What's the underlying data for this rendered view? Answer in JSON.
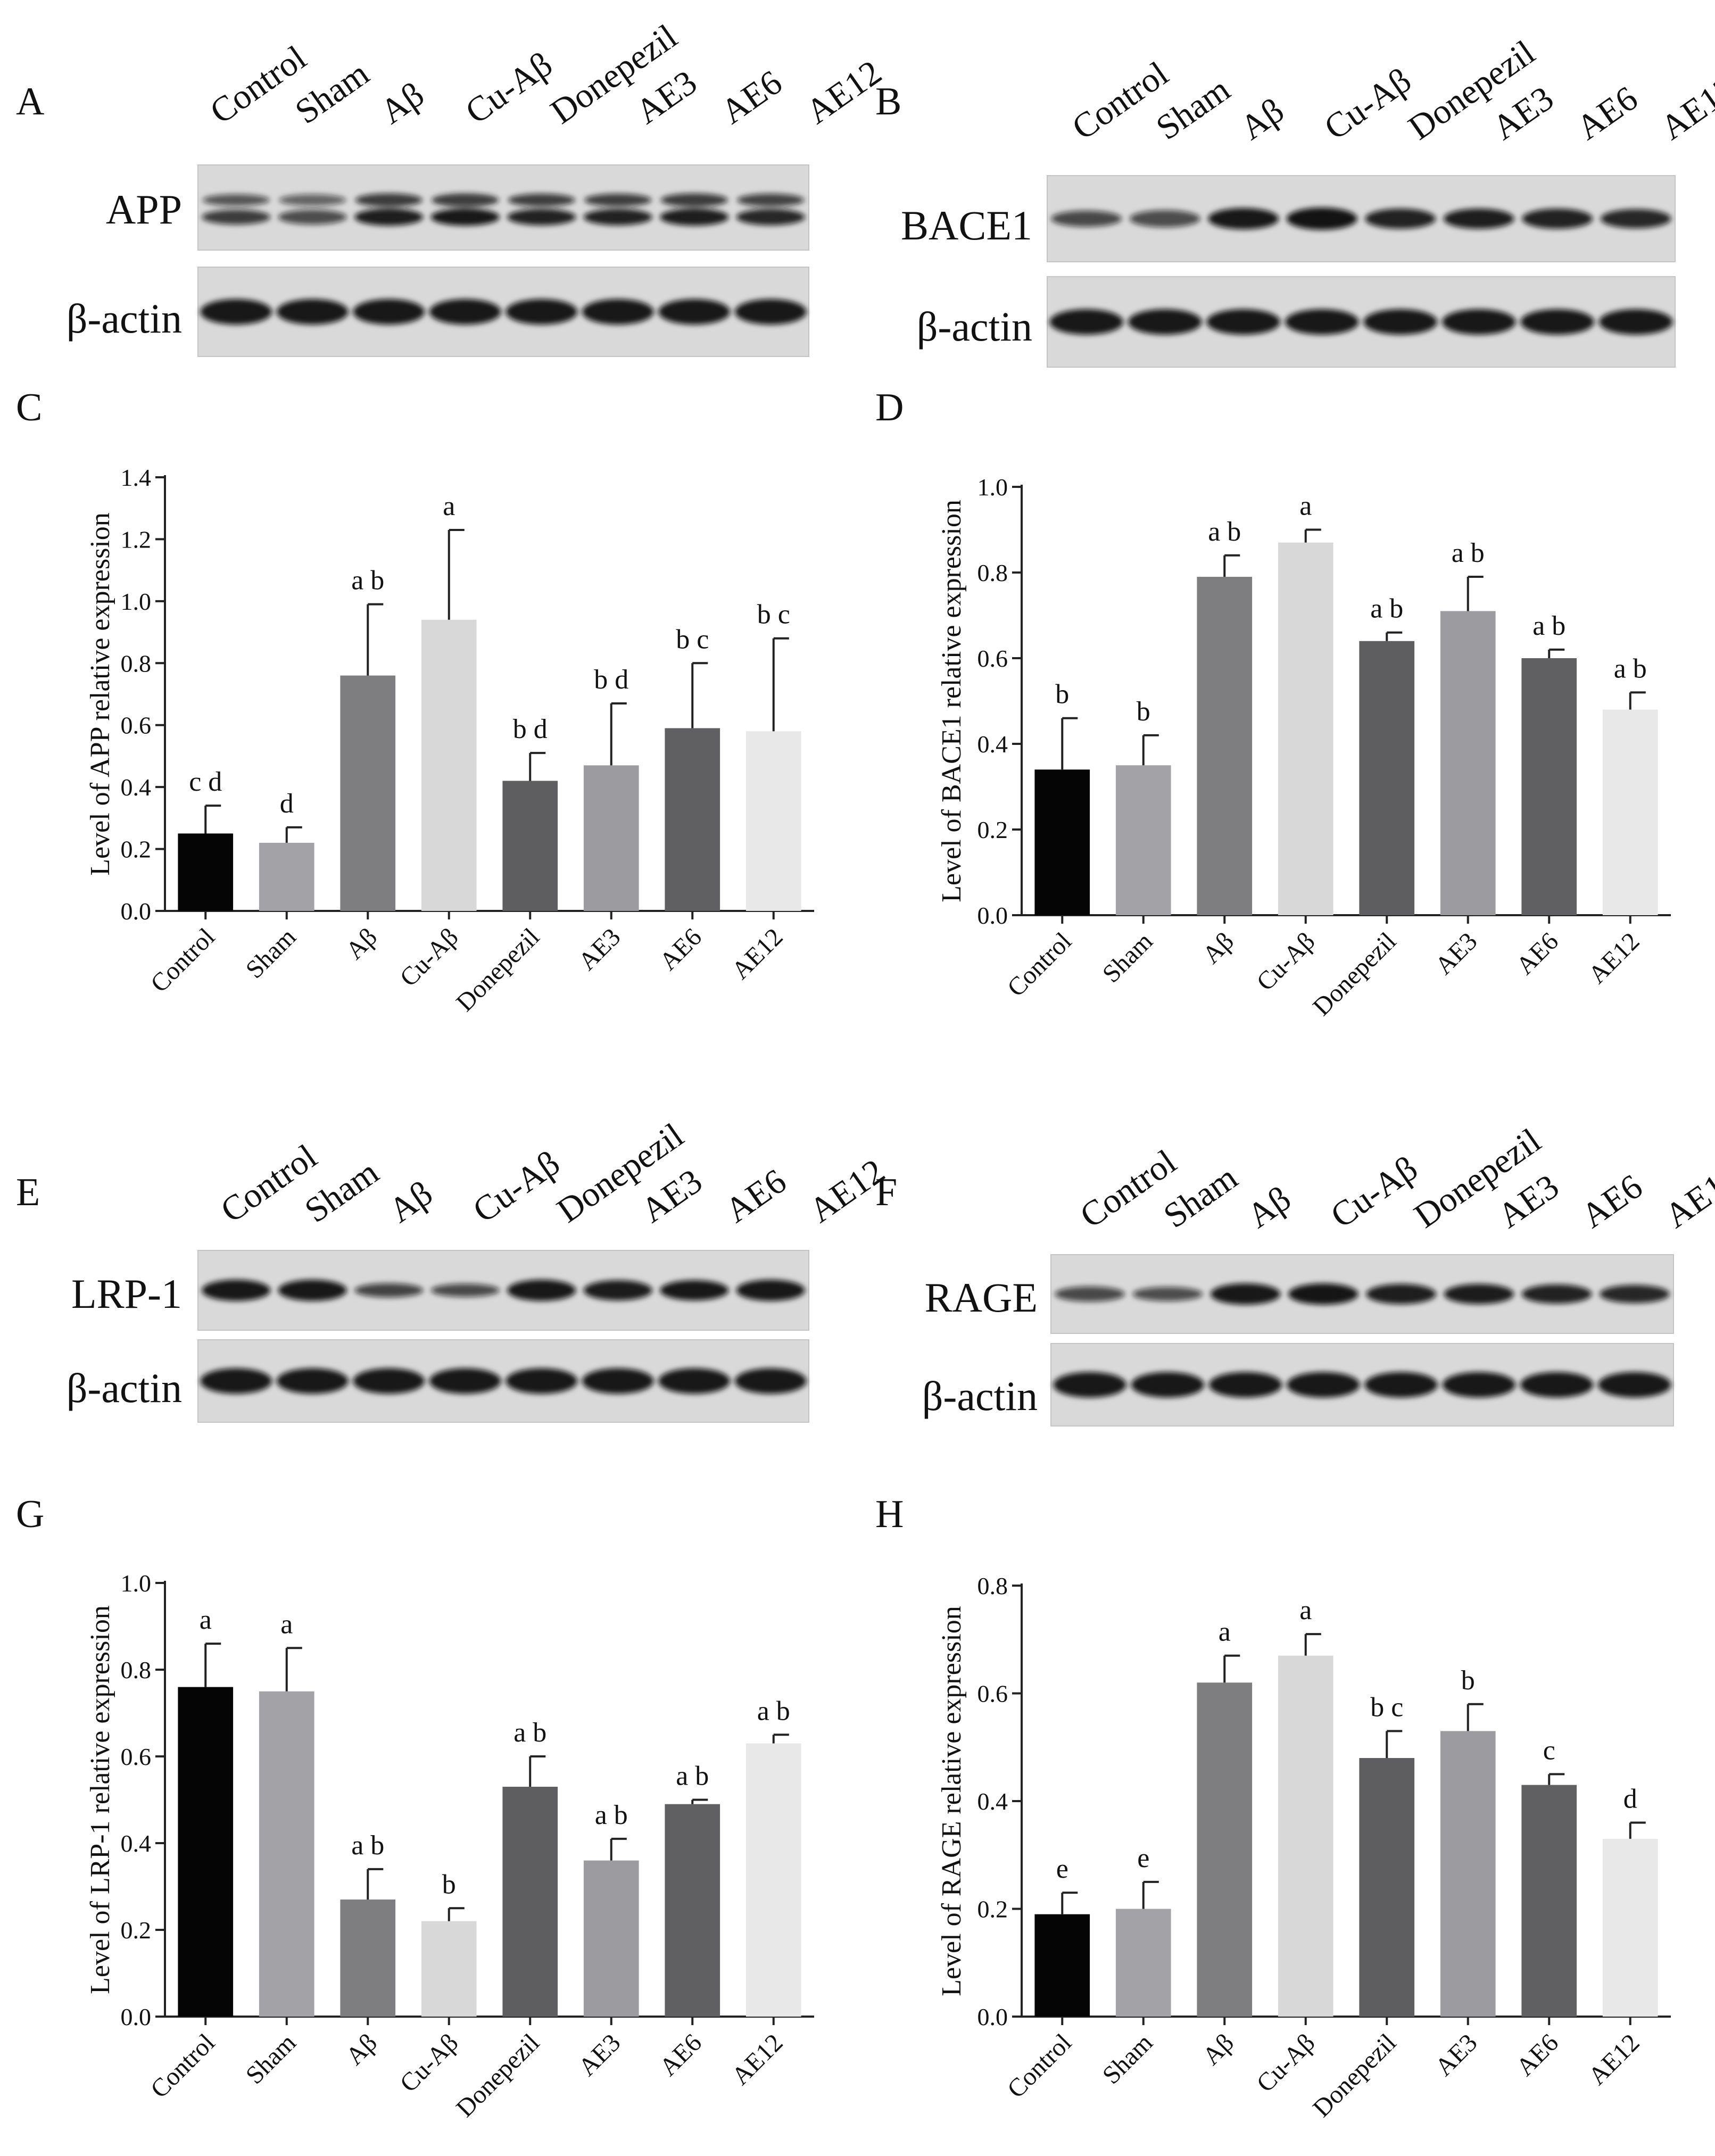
{
  "figure": {
    "panel_labels": [
      "A",
      "B",
      "C",
      "D",
      "E",
      "F",
      "G",
      "H"
    ],
    "lane_labels": [
      "Control",
      "Sham",
      "Aβ",
      "Cu-Aβ",
      "Donepezil",
      "AE3",
      "AE6",
      "AE12"
    ],
    "colors": {
      "Control": "#050505",
      "Sham": "#a3a3a7",
      "Aβ": "#7e7e80",
      "Cu-Aβ": "#d8d8d8",
      "Donepezil": "#5e5e60",
      "AE3": "#9c9ca0",
      "AE6": "#606062",
      "AE12": "#e8e8e8"
    }
  },
  "blots": [
    {
      "panel": "A",
      "rows": [
        {
          "label": "APP"
        },
        {
          "label": "β-actin"
        }
      ]
    },
    {
      "panel": "B",
      "rows": [
        {
          "label": "BACE1"
        },
        {
          "label": "β-actin"
        }
      ]
    },
    {
      "panel": "E",
      "rows": [
        {
          "label": "LRP-1"
        },
        {
          "label": "β-actin"
        }
      ]
    },
    {
      "panel": "F",
      "rows": [
        {
          "label": "RAGE"
        },
        {
          "label": "β-actin"
        }
      ]
    }
  ],
  "chart_data": [
    {
      "panel": "C",
      "type": "bar",
      "ylabel": "Level of APP relative expression",
      "ylim": [
        0,
        1.4
      ],
      "ticks": [
        "0.0",
        "0.2",
        "0.4",
        "0.6",
        "0.8",
        "1.0",
        "1.2",
        "1.4"
      ],
      "categories": [
        "Control",
        "Sham",
        "Aβ",
        "Cu-Aβ",
        "Donepezil",
        "AE3",
        "AE6",
        "AE12"
      ],
      "values": [
        0.25,
        0.22,
        0.76,
        0.94,
        0.42,
        0.47,
        0.59,
        0.58
      ],
      "errors": [
        0.09,
        0.05,
        0.23,
        0.29,
        0.09,
        0.2,
        0.21,
        0.3
      ],
      "sig": [
        "c d",
        "d",
        "a b",
        "a",
        "b d",
        "b d",
        "b c",
        "b c"
      ]
    },
    {
      "panel": "D",
      "type": "bar",
      "ylabel": "Level of BACE1 relative expression",
      "ylim": [
        0,
        1.0
      ],
      "ticks": [
        "0.0",
        "0.2",
        "0.4",
        "0.6",
        "0.8",
        "1.0"
      ],
      "categories": [
        "Control",
        "Sham",
        "Aβ",
        "Cu-Aβ",
        "Donepezil",
        "AE3",
        "AE6",
        "AE12"
      ],
      "values": [
        0.34,
        0.35,
        0.79,
        0.87,
        0.64,
        0.71,
        0.6,
        0.48
      ],
      "errors": [
        0.12,
        0.07,
        0.05,
        0.03,
        0.02,
        0.08,
        0.02,
        0.04
      ],
      "sig": [
        "b",
        "b",
        "a b",
        "a",
        "a b",
        "a b",
        "a b",
        "a b"
      ]
    },
    {
      "panel": "G",
      "type": "bar",
      "ylabel": "Level of LRP-1 relative expression",
      "ylim": [
        0,
        1.0
      ],
      "ticks": [
        "0.0",
        "0.2",
        "0.4",
        "0.6",
        "0.8",
        "1.0"
      ],
      "categories": [
        "Control",
        "Sham",
        "Aβ",
        "Cu-Aβ",
        "Donepezil",
        "AE3",
        "AE6",
        "AE12"
      ],
      "values": [
        0.76,
        0.75,
        0.27,
        0.22,
        0.53,
        0.36,
        0.49,
        0.63
      ],
      "errors": [
        0.1,
        0.1,
        0.07,
        0.03,
        0.07,
        0.05,
        0.01,
        0.02
      ],
      "sig": [
        "a",
        "a",
        "a b",
        "b",
        "a b",
        "a b",
        "a b",
        "a b"
      ]
    },
    {
      "panel": "H",
      "type": "bar",
      "ylabel": "Level of RAGE relative expression",
      "ylim": [
        0,
        0.8
      ],
      "ticks": [
        "0.0",
        "0.2",
        "0.4",
        "0.6",
        "0.8"
      ],
      "categories": [
        "Control",
        "Sham",
        "Aβ",
        "Cu-Aβ",
        "Donepezil",
        "AE3",
        "AE6",
        "AE12"
      ],
      "values": [
        0.19,
        0.2,
        0.62,
        0.67,
        0.48,
        0.53,
        0.43,
        0.33
      ],
      "errors": [
        0.04,
        0.05,
        0.05,
        0.04,
        0.05,
        0.05,
        0.02,
        0.03
      ],
      "sig": [
        "e",
        "e",
        "a",
        "a",
        "b c",
        "b",
        "c",
        "d"
      ]
    }
  ]
}
